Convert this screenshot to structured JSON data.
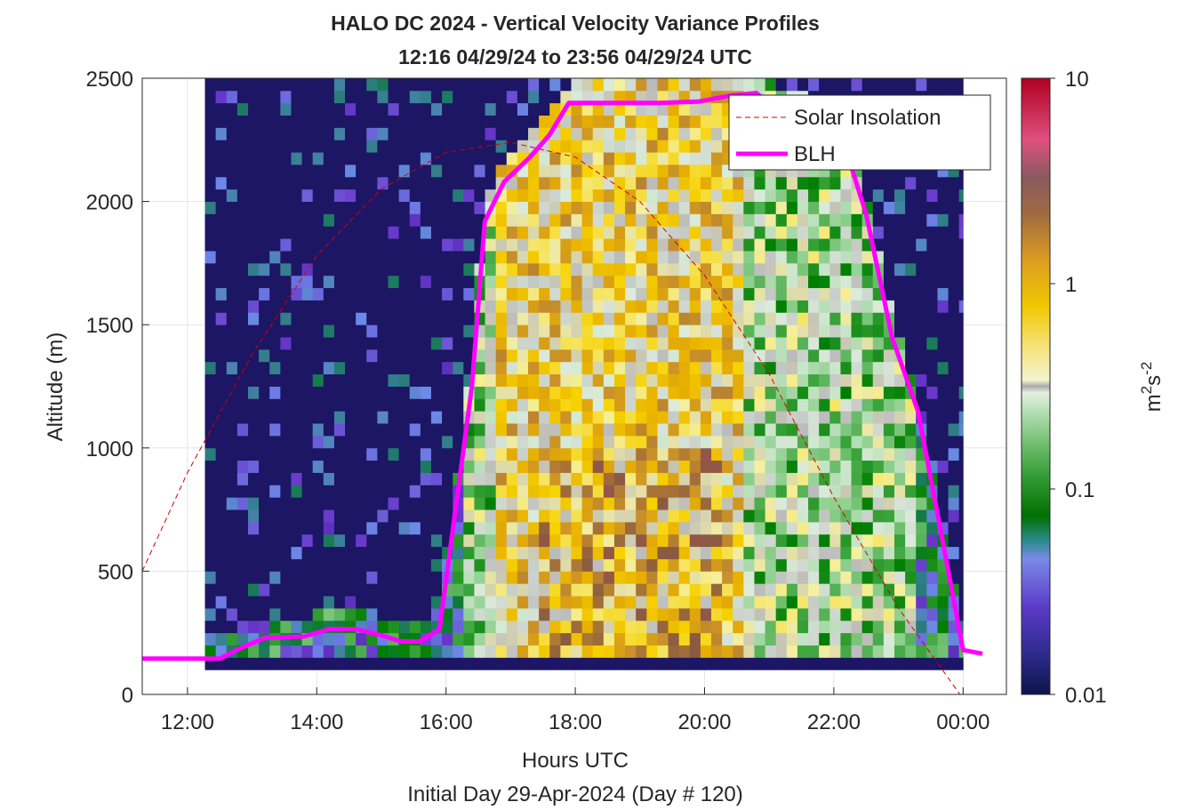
{
  "chart_data": {
    "type": "heatmap",
    "title": "HALO DC 2024 - Vertical Velocity Variance Profiles",
    "subtitle": "12:16 04/29/24 to 23:56 04/29/24  UTC",
    "xlabel": "Hours UTC",
    "xlabel2": "Initial Day 29-Apr-2024 (Day # 120)",
    "ylabel": "Altitude (m)",
    "colorbar_label": "m²s⁻²",
    "x_range_hours": [
      11.3,
      24.67
    ],
    "y_range_m": [
      0,
      2500
    ],
    "x_ticks": [
      {
        "hour": 12,
        "label": "12:00"
      },
      {
        "hour": 14,
        "label": "14:00"
      },
      {
        "hour": 16,
        "label": "16:00"
      },
      {
        "hour": 18,
        "label": "18:00"
      },
      {
        "hour": 20,
        "label": "20:00"
      },
      {
        "hour": 22,
        "label": "22:00"
      },
      {
        "hour": 24,
        "label": "00:00"
      }
    ],
    "y_ticks": [
      {
        "value": 0,
        "label": "0"
      },
      {
        "value": 500,
        "label": "500"
      },
      {
        "value": 1000,
        "label": "1000"
      },
      {
        "value": 1500,
        "label": "1500"
      },
      {
        "value": 2000,
        "label": "2000"
      },
      {
        "value": 2500,
        "label": "2500"
      }
    ],
    "colorbar": {
      "scale": "log",
      "range": [
        0.01,
        10
      ],
      "ticks": [
        {
          "value": 0.01,
          "label": "0.01"
        },
        {
          "value": 0.1,
          "label": "0.1"
        },
        {
          "value": 1,
          "label": "1"
        },
        {
          "value": 10,
          "label": "10"
        }
      ],
      "colormap": [
        "#0c1448",
        "#3a1a9a",
        "#6a3acb",
        "#6c8ae8",
        "#1f7a6a",
        "#007e00",
        "#3ea53e",
        "#8fd08f",
        "#dcecdc",
        "#bbbbbb",
        "#f5f0a0",
        "#f6d200",
        "#e8b000",
        "#c8902a",
        "#8a5a40",
        "#b84a6a",
        "#ff5080",
        "#b00020"
      ]
    },
    "legend": {
      "placement": "top-right",
      "entries": [
        {
          "label": "Solar Insolation",
          "color": "#d40000",
          "style": "dashed"
        },
        {
          "label": "BLH",
          "color": "#ff00ff",
          "style": "solid"
        }
      ]
    },
    "heatmap": {
      "x_start_hour": 12.27,
      "x_end_hour": 24.0,
      "time_step_hours": 0.1666667,
      "y_start_m": 100,
      "y_end_m": 2500,
      "range_gate_m": 50,
      "note_values": "variance in m2 s-2, log10 scale per cell, estimated"
    },
    "series": [
      {
        "name": "BLH",
        "x": [
          11.3,
          12.5,
          12.8,
          13.2,
          13.8,
          14.2,
          14.6,
          15.0,
          15.3,
          15.6,
          15.9,
          16.4,
          16.6,
          16.9,
          17.3,
          17.6,
          17.9,
          18.5,
          19.3,
          19.9,
          20.4,
          20.8,
          21.2,
          21.8,
          22.0,
          22.2,
          22.5,
          22.9,
          23.3,
          23.7,
          24.0,
          24.3
        ],
        "y": [
          145,
          145,
          185,
          230,
          235,
          265,
          265,
          240,
          215,
          215,
          265,
          1250,
          1920,
          2080,
          2180,
          2270,
          2400,
          2400,
          2400,
          2405,
          2430,
          2440,
          2360,
          2330,
          2240,
          2200,
          1950,
          1450,
          1150,
          600,
          180,
          165
        ]
      },
      {
        "name": "Solar Insolation",
        "x": [
          11.3,
          12.0,
          13.0,
          14.0,
          15.0,
          16.0,
          17.0,
          18.0,
          19.0,
          20.0,
          21.0,
          22.0,
          23.0,
          23.95,
          24.67
        ],
        "y": [
          500,
          900,
          1380,
          1780,
          2050,
          2200,
          2240,
          2180,
          2000,
          1700,
          1300,
          800,
          350,
          0,
          0
        ]
      }
    ]
  }
}
